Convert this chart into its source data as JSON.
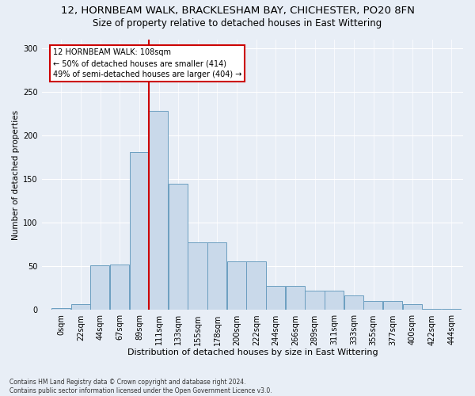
{
  "title": "12, HORNBEAM WALK, BRACKLESHAM BAY, CHICHESTER, PO20 8FN",
  "subtitle": "Size of property relative to detached houses in East Wittering",
  "xlabel": "Distribution of detached houses by size in East Wittering",
  "ylabel": "Number of detached properties",
  "bin_labels": [
    "0sqm",
    "22sqm",
    "44sqm",
    "67sqm",
    "89sqm",
    "111sqm",
    "133sqm",
    "155sqm",
    "178sqm",
    "200sqm",
    "222sqm",
    "244sqm",
    "266sqm",
    "289sqm",
    "311sqm",
    "333sqm",
    "355sqm",
    "377sqm",
    "400sqm",
    "422sqm",
    "444sqm"
  ],
  "bar_heights": [
    2,
    7,
    51,
    52,
    181,
    228,
    145,
    78,
    78,
    56,
    56,
    28,
    28,
    22,
    22,
    17,
    10,
    10,
    7,
    1,
    1
  ],
  "bar_color": "#c9d9ea",
  "bar_edge_color": "#6b9ec0",
  "vline_color": "#cc0000",
  "annotation_text": "12 HORNBEAM WALK: 108sqm\n← 50% of detached houses are smaller (414)\n49% of semi-detached houses are larger (404) →",
  "annotation_box_color": "#ffffff",
  "annotation_box_edge_color": "#cc0000",
  "footnote": "Contains HM Land Registry data © Crown copyright and database right 2024.\nContains public sector information licensed under the Open Government Licence v3.0.",
  "ylim": [
    0,
    310
  ],
  "yticks": [
    0,
    50,
    100,
    150,
    200,
    250,
    300
  ],
  "bg_color": "#e8eef6",
  "title_fontsize": 9.5,
  "subtitle_fontsize": 8.5,
  "xlabel_fontsize": 8,
  "ylabel_fontsize": 7.5,
  "tick_fontsize": 7,
  "annot_fontsize": 7
}
